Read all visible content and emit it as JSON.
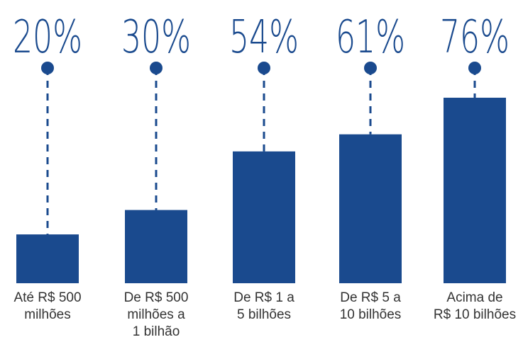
{
  "chart_data": {
    "type": "bar",
    "categories": [
      [
        "Até R$ 500",
        "milhões"
      ],
      [
        "De R$ 500",
        "milhões a",
        "1 bilhão"
      ],
      [
        "De R$ 1 a",
        "5 bilhões"
      ],
      [
        "De R$ 5 a",
        "10 bilhões"
      ],
      [
        "Acima de",
        "R$ 10 bilhões"
      ]
    ],
    "values": [
      20,
      30,
      54,
      61,
      76
    ],
    "value_labels": [
      "20%",
      "30%",
      "54%",
      "61%",
      "76%"
    ],
    "title": "",
    "xlabel": "",
    "ylabel": "",
    "ylim": [
      0,
      100
    ],
    "grid": false,
    "legend": "none",
    "colors": {
      "bar": "#1a4a8e",
      "text": "#333333"
    }
  }
}
